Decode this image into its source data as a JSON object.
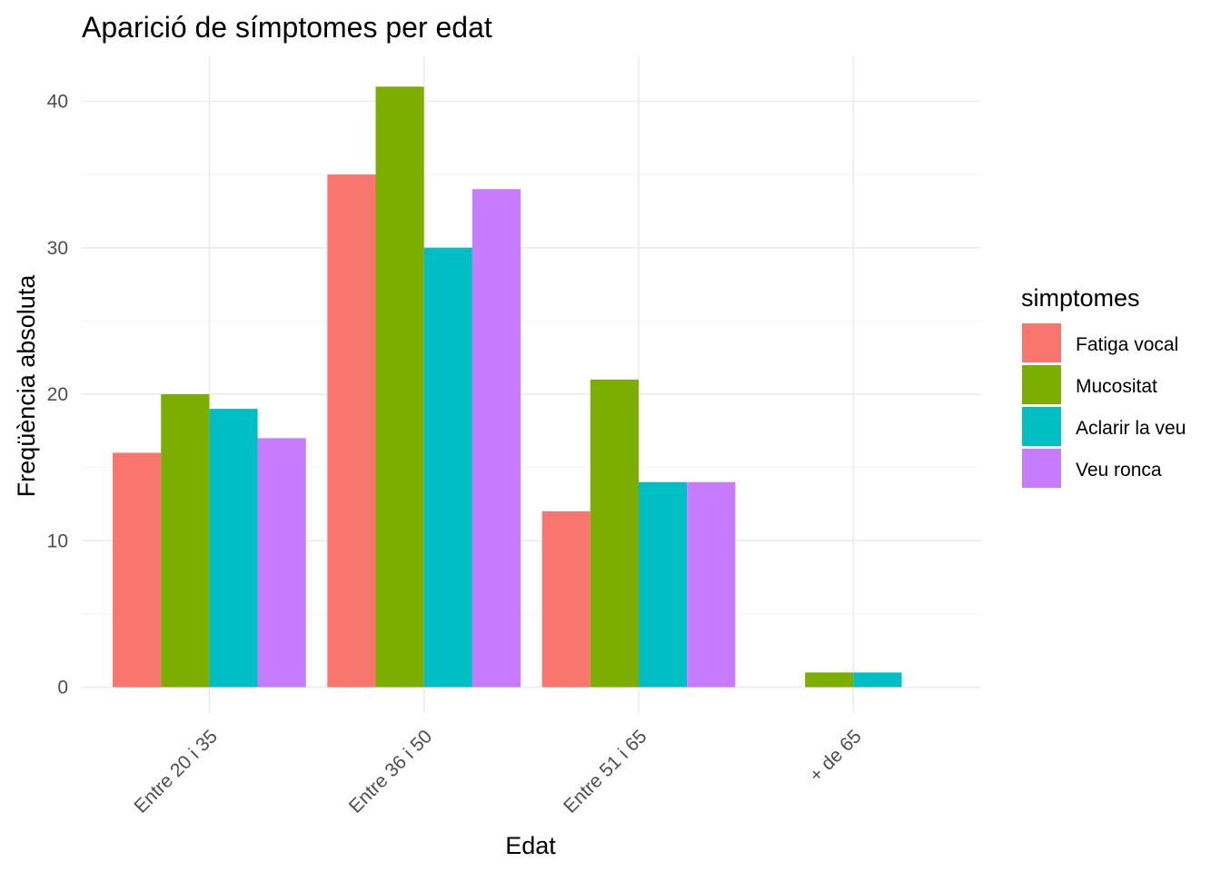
{
  "chart_data": {
    "type": "bar",
    "title": "Aparició de símptomes per edat",
    "xlabel": "Edat",
    "ylabel": "Freqüència absoluta",
    "categories": [
      "Entre 20 i 35",
      "Entre 36 i 50",
      "Entre 51 i 65",
      "+ de 65"
    ],
    "ylim": [
      0,
      43
    ],
    "yticks": [
      0,
      10,
      20,
      30,
      40
    ],
    "grid": true,
    "legend": {
      "title": "simptomes",
      "position": "right"
    },
    "series": [
      {
        "name": "Fatiga vocal",
        "color": "#F8766D",
        "values": [
          16,
          35,
          12,
          0
        ]
      },
      {
        "name": "Mucositat",
        "color": "#7CAE00",
        "values": [
          20,
          41,
          21,
          1
        ]
      },
      {
        "name": "Aclarir la veu",
        "color": "#00BFC4",
        "values": [
          19,
          30,
          14,
          1
        ]
      },
      {
        "name": "Veu ronca",
        "color": "#C77CFF",
        "values": [
          17,
          34,
          14,
          0
        ]
      }
    ]
  }
}
